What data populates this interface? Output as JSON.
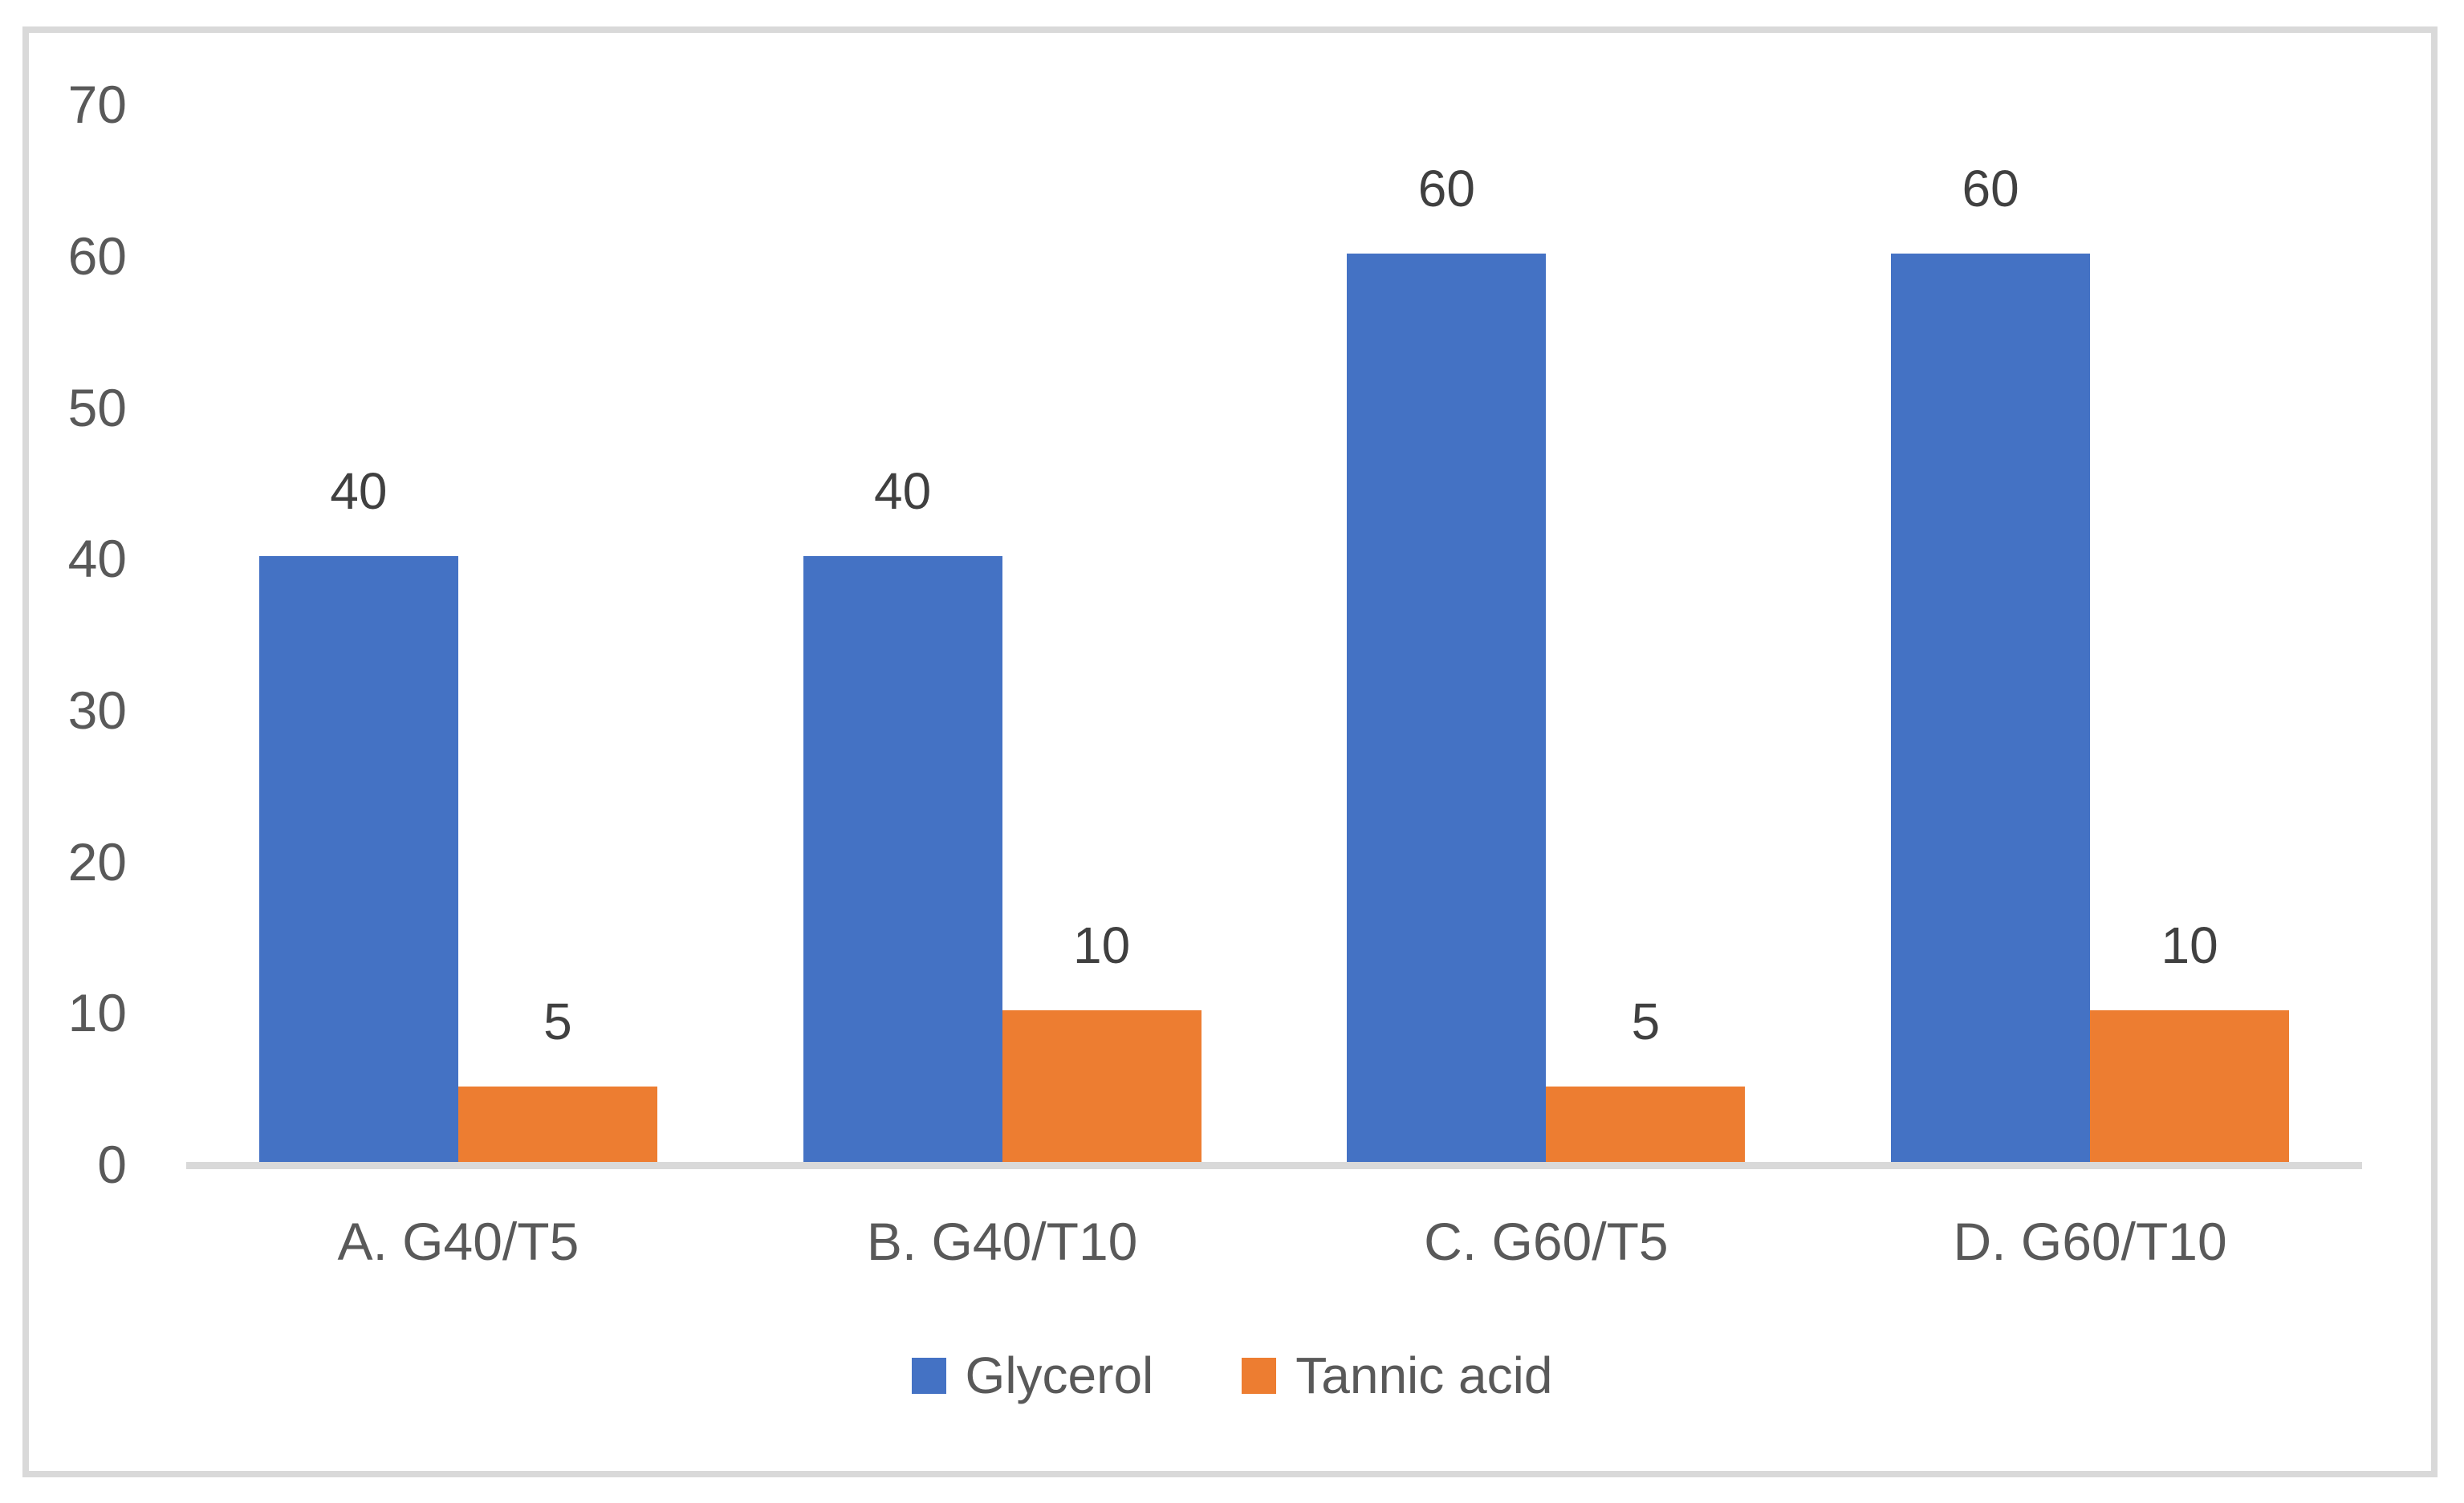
{
  "chart_data": {
    "type": "bar",
    "title": "",
    "categories": [
      "A. G40/T5",
      "B. G40/T10",
      "C. G60/T5",
      "D. G60/T10"
    ],
    "series": [
      {
        "name": "Glycerol",
        "color": "#4472C4",
        "values": [
          40,
          40,
          60,
          60
        ]
      },
      {
        "name": "Tannic acid",
        "color": "#ED7D31",
        "values": [
          5,
          10,
          5,
          10
        ]
      }
    ],
    "y_ticks": [
      0,
      10,
      20,
      30,
      40,
      50,
      60,
      70
    ],
    "ylim": [
      0,
      70
    ],
    "xlabel": "",
    "ylabel": "",
    "grid": false,
    "data_labels": true,
    "legend_position": "bottom"
  },
  "colors": {
    "background": "#FFFFFF",
    "border": "#D9D9D9",
    "axis_line": "#D9D9D9",
    "tick_label": "#595959",
    "category_label": "#595959",
    "data_label": "#404040",
    "legend_label": "#595959"
  }
}
